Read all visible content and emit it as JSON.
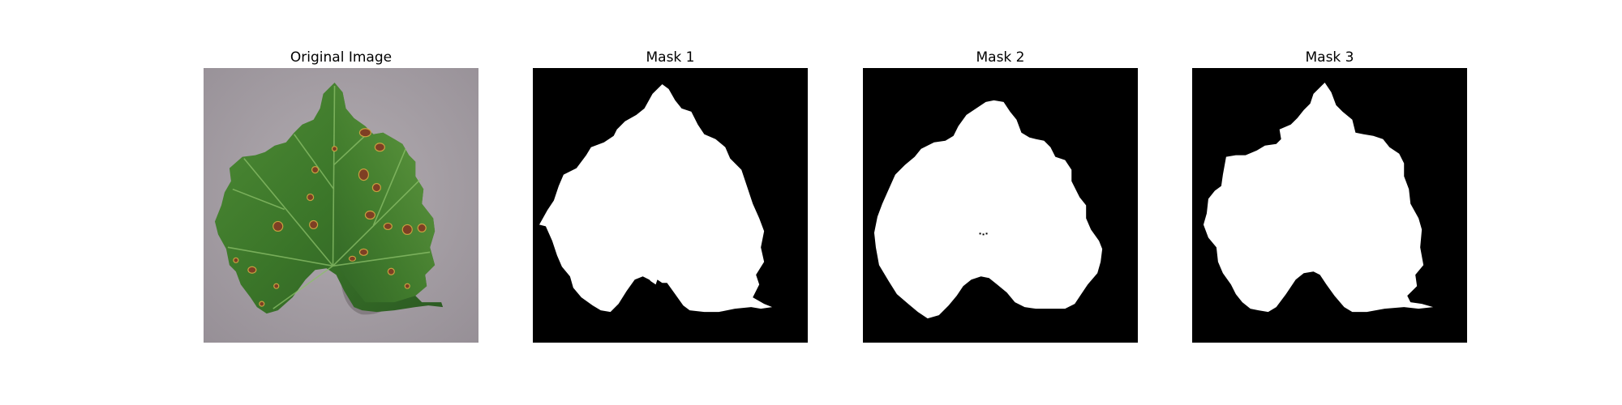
{
  "figure": {
    "panels": [
      {
        "title": "Original Image",
        "kind": "photo",
        "subject": "grape leaf with brown spots"
      },
      {
        "title": "Mask 1",
        "kind": "binary-mask"
      },
      {
        "title": "Mask 2",
        "kind": "binary-mask"
      },
      {
        "title": "Mask 3",
        "kind": "binary-mask"
      }
    ]
  },
  "colors": {
    "mask_background": "#000000",
    "mask_foreground": "#ffffff",
    "photo_background": "#a59ea4",
    "leaf_dark": "#2f5a25",
    "leaf_mid": "#3d7a2c",
    "leaf_light": "#5c9940",
    "lesion": "#8a4a2c"
  }
}
